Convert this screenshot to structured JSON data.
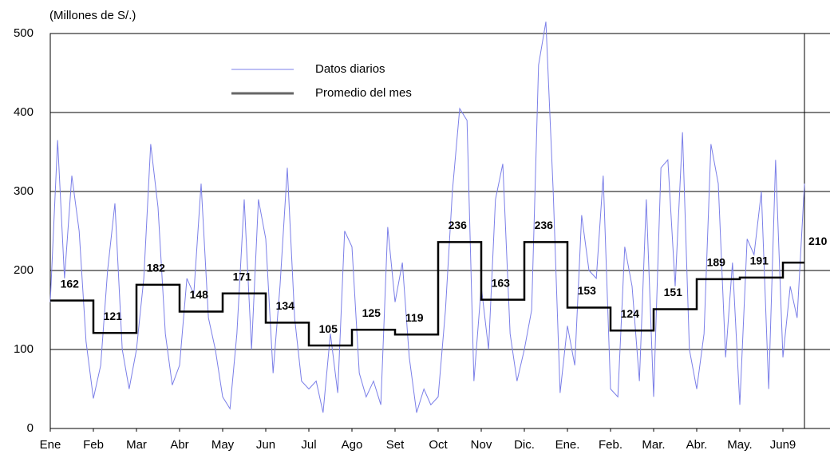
{
  "chart_data": {
    "type": "line",
    "y_label": "(Millones de S/.)",
    "xlim": [
      0,
      17.5
    ],
    "ylim": [
      0,
      500
    ],
    "yticks": [
      0,
      100,
      200,
      300,
      400,
      500
    ],
    "xticks": [
      {
        "value": 0,
        "label": "Ene"
      },
      {
        "value": 1,
        "label": "Feb"
      },
      {
        "value": 2,
        "label": "Mar"
      },
      {
        "value": 3,
        "label": "Abr"
      },
      {
        "value": 4,
        "label": "May"
      },
      {
        "value": 5,
        "label": "Jun"
      },
      {
        "value": 6,
        "label": "Jul"
      },
      {
        "value": 7,
        "label": "Ago"
      },
      {
        "value": 8,
        "label": "Set"
      },
      {
        "value": 9,
        "label": "Oct"
      },
      {
        "value": 10,
        "label": "Nov"
      },
      {
        "value": 11,
        "label": "Dic."
      },
      {
        "value": 12,
        "label": "Ene."
      },
      {
        "value": 13,
        "label": "Feb."
      },
      {
        "value": 14,
        "label": "Mar."
      },
      {
        "value": 15,
        "label": "Abr."
      },
      {
        "value": 16,
        "label": "May."
      },
      {
        "value": 17,
        "label": "Jun9"
      }
    ],
    "grid": true,
    "series": [
      {
        "name": "Datos diarios",
        "color": "#7b7fe8",
        "style": "line",
        "x": [
          0,
          0.17,
          0.33,
          0.5,
          0.67,
          0.83,
          1,
          1.17,
          1.33,
          1.5,
          1.67,
          1.83,
          2,
          2.17,
          2.33,
          2.5,
          2.67,
          2.83,
          3,
          3.17,
          3.33,
          3.5,
          3.67,
          3.83,
          4,
          4.17,
          4.33,
          4.5,
          4.67,
          4.83,
          5,
          5.17,
          5.33,
          5.5,
          5.67,
          5.83,
          6,
          6.17,
          6.33,
          6.5,
          6.67,
          6.83,
          7,
          7.17,
          7.33,
          7.5,
          7.67,
          7.83,
          8,
          8.17,
          8.33,
          8.5,
          8.67,
          8.83,
          9,
          9.17,
          9.33,
          9.5,
          9.67,
          9.83,
          10,
          10.17,
          10.33,
          10.5,
          10.67,
          10.83,
          11,
          11.17,
          11.33,
          11.5,
          11.67,
          11.83,
          12,
          12.17,
          12.33,
          12.5,
          12.67,
          12.83,
          13,
          13.17,
          13.33,
          13.5,
          13.67,
          13.83,
          14,
          14.17,
          14.33,
          14.5,
          14.67,
          14.83,
          15,
          15.17,
          15.33,
          15.5,
          15.67,
          15.83,
          16,
          16.17,
          16.33,
          16.5,
          16.67,
          16.83,
          17,
          17.17,
          17.33,
          17.5
        ],
        "values": [
          160,
          365,
          190,
          320,
          250,
          110,
          38,
          80,
          200,
          285,
          100,
          50,
          100,
          190,
          360,
          280,
          120,
          55,
          80,
          190,
          170,
          310,
          140,
          100,
          40,
          25,
          120,
          290,
          100,
          290,
          240,
          70,
          180,
          330,
          140,
          60,
          50,
          60,
          20,
          120,
          45,
          250,
          230,
          70,
          40,
          60,
          30,
          255,
          160,
          210,
          90,
          20,
          50,
          30,
          40,
          150,
          300,
          405,
          390,
          60,
          180,
          100,
          290,
          335,
          120,
          60,
          100,
          150,
          460,
          515,
          300,
          45,
          130,
          80,
          270,
          200,
          190,
          320,
          50,
          40,
          230,
          180,
          60,
          290,
          40,
          330,
          340,
          180,
          375,
          100,
          50,
          120,
          360,
          310,
          90,
          210,
          30,
          240,
          220,
          300,
          50,
          340,
          90,
          180,
          140,
          310
        ]
      },
      {
        "name": "Promedio del mes",
        "color": "#000000",
        "style": "step",
        "x": [
          0,
          1,
          2,
          3,
          4,
          5,
          6,
          7,
          8,
          9,
          10,
          11,
          12,
          13,
          14,
          15,
          16,
          17
        ],
        "values": [
          162,
          121,
          182,
          148,
          171,
          134,
          105,
          125,
          119,
          236,
          163,
          236,
          153,
          124,
          151,
          189,
          191,
          210
        ]
      }
    ]
  }
}
